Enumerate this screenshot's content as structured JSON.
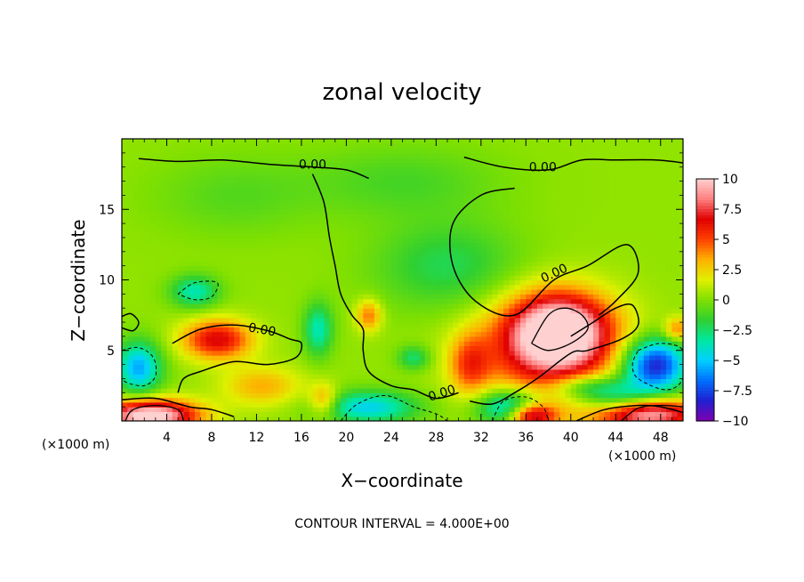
{
  "chart_data": {
    "type": "heatmap",
    "title": "zonal velocity",
    "xlabel": "X−coordinate",
    "ylabel": "Z−coordinate",
    "x_unit_left": "(×1000 m)",
    "x_unit_right": "(×1000 m)",
    "xlim": [
      0,
      50
    ],
    "ylim": [
      0,
      20
    ],
    "x_ticks": [
      4,
      8,
      12,
      16,
      20,
      24,
      28,
      32,
      36,
      40,
      44,
      48
    ],
    "x_tick_labels": [
      "4",
      "8",
      "12",
      "16",
      "20",
      "24",
      "28",
      "32",
      "36",
      "40",
      "44",
      "48"
    ],
    "y_ticks": [
      5,
      10,
      15
    ],
    "y_tick_labels": [
      "5",
      "10",
      "15"
    ],
    "colorbar": {
      "range": [
        -10,
        10
      ],
      "ticks": [
        10,
        7.5,
        5,
        2.5,
        0,
        -2.5,
        -5,
        -7.5,
        -10
      ],
      "tick_labels": [
        "10",
        "7.5",
        "5",
        "2.5",
        "0",
        "−2.5",
        "−5",
        "−7.5",
        "−10"
      ],
      "colors": [
        "#8000b0",
        "#2020d0",
        "#0070ff",
        "#00d0ff",
        "#00e8a0",
        "#30d030",
        "#80e000",
        "#e0f000",
        "#ffb000",
        "#ff4000",
        "#e00000",
        "#ff8080",
        "#ffd0d0"
      ]
    },
    "contour_labels": [
      "0.00",
      "0.00",
      "0.00",
      "0.00",
      "0.00"
    ],
    "contour_interval": "CONTOUR INTERVAL = 4.000E+00",
    "features": [
      {
        "x": 39,
        "z": 6.5,
        "value": 9,
        "sx": 3.0,
        "sz": 1.8
      },
      {
        "x": 38,
        "z": 5.0,
        "value": 6,
        "sx": 4.5,
        "sz": 2.6
      },
      {
        "x": 8.5,
        "z": 5.8,
        "value": 6.5,
        "sx": 2.2,
        "sz": 1.0
      },
      {
        "x": 2.5,
        "z": 0.4,
        "value": 11,
        "sx": 3.0,
        "sz": 0.8
      },
      {
        "x": 46.5,
        "z": 0.5,
        "value": 10,
        "sx": 3.5,
        "sz": 0.8
      },
      {
        "x": 36.5,
        "z": 0.4,
        "value": 8,
        "sx": 1.5,
        "sz": 0.6
      },
      {
        "x": 31,
        "z": 4.0,
        "value": 4,
        "sx": 1.3,
        "sz": 1.5
      },
      {
        "x": 22,
        "z": 7.5,
        "value": 4,
        "sx": 0.8,
        "sz": 0.8
      },
      {
        "x": 18,
        "z": 1.5,
        "value": 3.5,
        "sx": 0.9,
        "sz": 0.8
      },
      {
        "x": 12.5,
        "z": 2.5,
        "value": 3,
        "sx": 2.5,
        "sz": 1.0
      },
      {
        "x": 1.5,
        "z": 3.8,
        "value": -6,
        "sx": 1.4,
        "sz": 1.3
      },
      {
        "x": 47.5,
        "z": 4.0,
        "value": -9,
        "sx": 2.0,
        "sz": 1.3
      },
      {
        "x": 44,
        "z": 1.5,
        "value": -5,
        "sx": 2.5,
        "sz": 1.0
      },
      {
        "x": 34.5,
        "z": 1.0,
        "value": -6,
        "sx": 2.0,
        "sz": 0.9
      },
      {
        "x": 22,
        "z": 1.0,
        "value": -5,
        "sx": 3.0,
        "sz": 0.8
      },
      {
        "x": 17.5,
        "z": 6.5,
        "value": -4,
        "sx": 0.9,
        "sz": 1.3
      },
      {
        "x": 6.5,
        "z": 9.2,
        "value": -4,
        "sx": 1.5,
        "sz": 0.8
      },
      {
        "x": 29,
        "z": 11.0,
        "value": -2.5,
        "sx": 4.5,
        "sz": 2.2
      },
      {
        "x": 25,
        "z": 17.0,
        "value": -1.5,
        "sx": 6.0,
        "sz": 1.8
      },
      {
        "x": 10,
        "z": 16.0,
        "value": -1.2,
        "sx": 5.0,
        "sz": 2.0
      },
      {
        "x": 26,
        "z": 4.5,
        "value": -3,
        "sx": 1.0,
        "sz": 0.6
      },
      {
        "x": 41,
        "z": 2.5,
        "value": -3,
        "sx": 2.0,
        "sz": 0.6
      },
      {
        "x": 49.5,
        "z": 6.5,
        "value": 4,
        "sx": 0.8,
        "sz": 0.6
      }
    ],
    "contour_lines_zero": [
      [
        [
          1.5,
          18.6
        ],
        [
          5,
          18.4
        ],
        [
          9,
          18.5
        ],
        [
          13,
          18.2
        ],
        [
          17,
          18.0
        ],
        [
          20,
          17.8
        ],
        [
          22,
          17.2
        ]
      ],
      [
        [
          17,
          17.5
        ],
        [
          18,
          15.5
        ],
        [
          18.5,
          13
        ],
        [
          19,
          11
        ],
        [
          19.5,
          9
        ],
        [
          20.5,
          7.5
        ],
        [
          21.5,
          6.5
        ],
        [
          21.5,
          5
        ],
        [
          22,
          3.5
        ],
        [
          24,
          2.5
        ],
        [
          26,
          2.2
        ],
        [
          28,
          1.6
        ],
        [
          30,
          2.0
        ]
      ],
      [
        [
          30.5,
          18.7
        ],
        [
          34,
          18.0
        ],
        [
          38,
          17.8
        ],
        [
          41,
          18.5
        ],
        [
          44,
          18.5
        ],
        [
          47.5,
          18.5
        ],
        [
          50,
          18.3
        ]
      ],
      [
        [
          35,
          16.5
        ],
        [
          32,
          16.0
        ],
        [
          29.5,
          14.0
        ],
        [
          29.5,
          11.0
        ],
        [
          31.5,
          8.5
        ],
        [
          35,
          7.5
        ],
        [
          38.5,
          10.0
        ],
        [
          41.5,
          11.0
        ],
        [
          45,
          12.5
        ],
        [
          46,
          10.5
        ],
        [
          44,
          8.5
        ],
        [
          42.5,
          7.5
        ]
      ],
      [
        [
          40,
          6.0
        ],
        [
          42,
          7.0
        ],
        [
          44,
          8.0
        ],
        [
          45.5,
          8.2
        ],
        [
          46,
          6.8
        ],
        [
          44.5,
          5.8
        ],
        [
          41.5,
          5.0
        ],
        [
          40,
          4.8
        ],
        [
          37,
          3.0
        ],
        [
          35,
          2.0
        ],
        [
          33,
          1.2
        ],
        [
          31,
          1.4
        ]
      ],
      [
        [
          4.5,
          5.5
        ],
        [
          7,
          6.5
        ],
        [
          10,
          6.8
        ],
        [
          13,
          6.4
        ],
        [
          15,
          5.8
        ],
        [
          16,
          5.5
        ],
        [
          15.5,
          4.5
        ],
        [
          13,
          4.0
        ],
        [
          10,
          4.2
        ],
        [
          7,
          3.5
        ],
        [
          5.5,
          3.0
        ],
        [
          5,
          2.0
        ]
      ],
      [
        [
          0,
          1.5
        ],
        [
          3,
          1.6
        ],
        [
          6,
          1.0
        ],
        [
          8,
          0.8
        ],
        [
          10,
          0.3
        ]
      ],
      [
        [
          40.5,
          0.0
        ],
        [
          43,
          0.8
        ],
        [
          46,
          1.1
        ],
        [
          48,
          1.0
        ],
        [
          50,
          0.6
        ]
      ],
      [
        [
          0,
          6.6
        ],
        [
          1,
          6.4
        ],
        [
          1.5,
          7.0
        ],
        [
          0.8,
          7.6
        ],
        [
          0,
          7.4
        ]
      ]
    ],
    "contour_lines_neg": [
      [
        [
          0,
          5.0
        ],
        [
          1.5,
          5.2
        ],
        [
          2.8,
          4.5
        ],
        [
          3.0,
          3.2
        ],
        [
          2.0,
          2.5
        ],
        [
          0.5,
          2.7
        ],
        [
          0,
          3.0
        ]
      ],
      [
        [
          5,
          9.0
        ],
        [
          6.5,
          9.8
        ],
        [
          8.5,
          9.8
        ],
        [
          8.0,
          8.8
        ],
        [
          6.5,
          8.6
        ],
        [
          5,
          9.0
        ]
      ],
      [
        [
          46,
          5.0
        ],
        [
          48,
          5.5
        ],
        [
          50,
          5.0
        ],
        [
          50,
          3.0
        ],
        [
          48.5,
          2.2
        ],
        [
          46,
          3.0
        ],
        [
          45.5,
          4.0
        ],
        [
          46,
          5.0
        ]
      ],
      [
        [
          19.5,
          0.0
        ],
        [
          21,
          1.2
        ],
        [
          23.5,
          1.8
        ],
        [
          26,
          1.0
        ],
        [
          28,
          0.5
        ],
        [
          29,
          0.0
        ]
      ],
      [
        [
          33,
          0.0
        ],
        [
          34,
          1.4
        ],
        [
          36,
          1.7
        ],
        [
          37.5,
          1.0
        ],
        [
          38,
          0.0
        ]
      ]
    ],
    "contour_lines_pos": [
      [
        [
          36.5,
          5.5
        ],
        [
          38,
          7.5
        ],
        [
          39.5,
          8.0
        ],
        [
          41,
          7.5
        ],
        [
          41.5,
          6.5
        ],
        [
          40,
          5.5
        ],
        [
          38,
          5.0
        ],
        [
          36.5,
          5.5
        ]
      ],
      [
        [
          0.3,
          0.0
        ],
        [
          1,
          0.8
        ],
        [
          3,
          1.1
        ],
        [
          5,
          0.8
        ],
        [
          5.5,
          0.0
        ]
      ],
      [
        [
          44.5,
          0.0
        ],
        [
          46,
          0.9
        ],
        [
          48,
          1.1
        ],
        [
          50,
          1.0
        ]
      ]
    ],
    "contour_label_positions": [
      [
        17,
        18.2
      ],
      [
        37.5,
        18.0
      ],
      [
        38.5,
        10.5
      ],
      [
        12.5,
        6.5
      ],
      [
        28.5,
        2.0
      ]
    ]
  }
}
